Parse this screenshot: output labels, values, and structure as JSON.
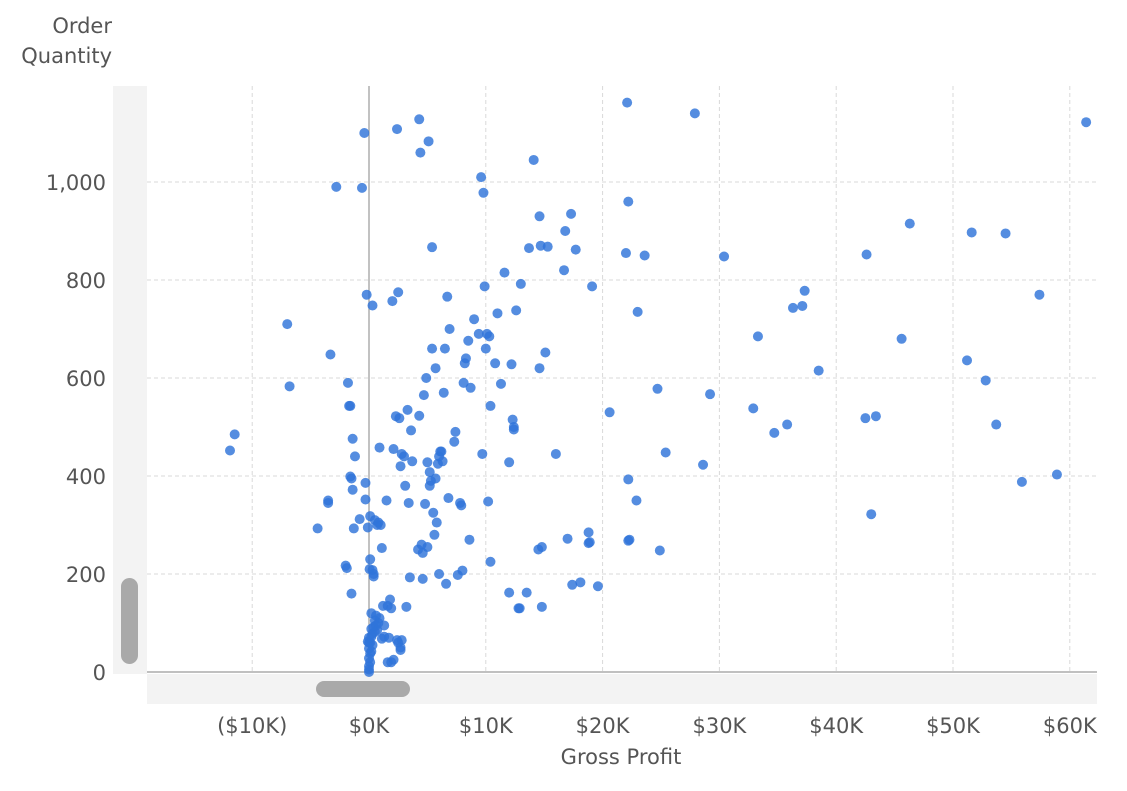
{
  "chart_data": {
    "type": "scatter",
    "xlabel": "Gross Profit",
    "ylabel_lines": [
      "Order",
      "Quantity"
    ],
    "xlim": [
      -20000,
      62000
    ],
    "ylim": [
      0,
      1170
    ],
    "x_ticks": [
      -10000,
      0,
      10000,
      20000,
      30000,
      40000,
      50000,
      60000
    ],
    "x_tick_labels": [
      "($10K)",
      "$0K",
      "$10K",
      "$20K",
      "$30K",
      "$40K",
      "$50K",
      "$60K"
    ],
    "y_ticks": [
      0,
      200,
      400,
      600,
      800,
      1000
    ],
    "y_tick_labels": [
      "0",
      "200",
      "400",
      "600",
      "800",
      "1,000"
    ],
    "grid": true,
    "point_color": "#2f74d9",
    "points": [
      [
        -11900,
        452
      ],
      [
        -11500,
        485
      ],
      [
        -7000,
        710
      ],
      [
        -6800,
        583
      ],
      [
        -4400,
        293
      ],
      [
        -3500,
        350
      ],
      [
        -3500,
        345
      ],
      [
        -3300,
        648
      ],
      [
        -2800,
        990
      ],
      [
        -2000,
        217
      ],
      [
        -1900,
        212
      ],
      [
        -1800,
        590
      ],
      [
        -1700,
        543
      ],
      [
        -1600,
        543
      ],
      [
        -1600,
        399
      ],
      [
        -1500,
        395
      ],
      [
        -1500,
        160
      ],
      [
        -1400,
        476
      ],
      [
        -1400,
        372
      ],
      [
        -1300,
        293
      ],
      [
        -1200,
        440
      ],
      [
        -800,
        312
      ],
      [
        -600,
        988
      ],
      [
        -400,
        1100
      ],
      [
        -300,
        386
      ],
      [
        -300,
        352
      ],
      [
        -200,
        770
      ],
      [
        -100,
        295
      ],
      [
        0,
        60
      ],
      [
        50,
        210
      ],
      [
        100,
        230
      ],
      [
        100,
        318
      ],
      [
        200,
        120
      ],
      [
        300,
        748
      ],
      [
        300,
        208
      ],
      [
        400,
        200
      ],
      [
        400,
        195
      ],
      [
        500,
        310
      ],
      [
        700,
        300
      ],
      [
        800,
        305
      ],
      [
        900,
        458
      ],
      [
        1000,
        300
      ],
      [
        1100,
        253
      ],
      [
        1200,
        135
      ],
      [
        1300,
        95
      ],
      [
        1500,
        350
      ],
      [
        1600,
        135
      ],
      [
        1800,
        148
      ],
      [
        1900,
        130
      ],
      [
        2000,
        757
      ],
      [
        2100,
        455
      ],
      [
        2300,
        522
      ],
      [
        2400,
        1108
      ],
      [
        2500,
        775
      ],
      [
        2600,
        518
      ],
      [
        2700,
        420
      ],
      [
        2800,
        445
      ],
      [
        3000,
        440
      ],
      [
        3100,
        380
      ],
      [
        3200,
        133
      ],
      [
        3300,
        535
      ],
      [
        3400,
        345
      ],
      [
        3500,
        193
      ],
      [
        3600,
        493
      ],
      [
        3700,
        430
      ],
      [
        4200,
        250
      ],
      [
        4300,
        523
      ],
      [
        4300,
        1128
      ],
      [
        4400,
        1060
      ],
      [
        4500,
        260
      ],
      [
        4600,
        190
      ],
      [
        4600,
        243
      ],
      [
        4700,
        565
      ],
      [
        4800,
        343
      ],
      [
        4900,
        600
      ],
      [
        5000,
        255
      ],
      [
        5000,
        428
      ],
      [
        5100,
        1083
      ],
      [
        5200,
        380
      ],
      [
        5200,
        408
      ],
      [
        5300,
        390
      ],
      [
        5400,
        660
      ],
      [
        5400,
        867
      ],
      [
        5500,
        325
      ],
      [
        5600,
        280
      ],
      [
        5700,
        395
      ],
      [
        5700,
        620
      ],
      [
        5800,
        305
      ],
      [
        5900,
        425
      ],
      [
        6000,
        200
      ],
      [
        6000,
        440
      ],
      [
        6100,
        450
      ],
      [
        6200,
        450
      ],
      [
        6300,
        430
      ],
      [
        6400,
        570
      ],
      [
        6500,
        660
      ],
      [
        6600,
        180
      ],
      [
        6700,
        766
      ],
      [
        6800,
        355
      ],
      [
        6900,
        700
      ],
      [
        7300,
        470
      ],
      [
        7400,
        490
      ],
      [
        7600,
        198
      ],
      [
        7800,
        345
      ],
      [
        7900,
        340
      ],
      [
        8000,
        207
      ],
      [
        8100,
        590
      ],
      [
        8200,
        630
      ],
      [
        8300,
        640
      ],
      [
        8500,
        676
      ],
      [
        8600,
        270
      ],
      [
        8700,
        580
      ],
      [
        9000,
        720
      ],
      [
        9400,
        690
      ],
      [
        9600,
        1010
      ],
      [
        9700,
        445
      ],
      [
        9800,
        978
      ],
      [
        9900,
        787
      ],
      [
        10000,
        660
      ],
      [
        10100,
        690
      ],
      [
        10200,
        348
      ],
      [
        10300,
        685
      ],
      [
        10400,
        225
      ],
      [
        10400,
        543
      ],
      [
        10800,
        630
      ],
      [
        11000,
        732
      ],
      [
        11300,
        588
      ],
      [
        11600,
        815
      ],
      [
        12000,
        428
      ],
      [
        12000,
        162
      ],
      [
        12200,
        628
      ],
      [
        12300,
        515
      ],
      [
        12400,
        495
      ],
      [
        12400,
        500
      ],
      [
        12600,
        738
      ],
      [
        12800,
        130
      ],
      [
        12900,
        130
      ],
      [
        13000,
        792
      ],
      [
        13500,
        162
      ],
      [
        13700,
        865
      ],
      [
        14100,
        1045
      ],
      [
        14500,
        250
      ],
      [
        14600,
        930
      ],
      [
        14600,
        620
      ],
      [
        14700,
        870
      ],
      [
        14800,
        255
      ],
      [
        14800,
        133
      ],
      [
        15100,
        652
      ],
      [
        15300,
        868
      ],
      [
        16000,
        445
      ],
      [
        16700,
        820
      ],
      [
        16800,
        900
      ],
      [
        17000,
        272
      ],
      [
        17300,
        935
      ],
      [
        17400,
        178
      ],
      [
        17700,
        862
      ],
      [
        18100,
        183
      ],
      [
        18800,
        285
      ],
      [
        18800,
        263
      ],
      [
        18900,
        265
      ],
      [
        19100,
        787
      ],
      [
        19600,
        175
      ],
      [
        20600,
        530
      ],
      [
        22000,
        855
      ],
      [
        22100,
        1162
      ],
      [
        22200,
        960
      ],
      [
        22200,
        268
      ],
      [
        22200,
        393
      ],
      [
        22300,
        270
      ],
      [
        22900,
        350
      ],
      [
        23000,
        735
      ],
      [
        23600,
        850
      ],
      [
        24700,
        578
      ],
      [
        24900,
        248
      ],
      [
        25400,
        448
      ],
      [
        27900,
        1140
      ],
      [
        28600,
        423
      ],
      [
        29200,
        567
      ],
      [
        30400,
        848
      ],
      [
        32900,
        538
      ],
      [
        33300,
        685
      ],
      [
        34700,
        488
      ],
      [
        35800,
        505
      ],
      [
        36300,
        743
      ],
      [
        37100,
        747
      ],
      [
        37300,
        778
      ],
      [
        38500,
        615
      ],
      [
        42500,
        518
      ],
      [
        42600,
        852
      ],
      [
        43000,
        322
      ],
      [
        43400,
        522
      ],
      [
        45600,
        680
      ],
      [
        46300,
        915
      ],
      [
        51200,
        636
      ],
      [
        51600,
        897
      ],
      [
        52800,
        595
      ],
      [
        53700,
        505
      ],
      [
        54500,
        895
      ],
      [
        55900,
        388
      ],
      [
        57400,
        770
      ],
      [
        58900,
        403
      ],
      [
        61400,
        1122
      ]
    ],
    "near_zero_points": [
      [
        0,
        0
      ],
      [
        0,
        5
      ],
      [
        0,
        12
      ],
      [
        100,
        20
      ],
      [
        0,
        28
      ],
      [
        100,
        38
      ],
      [
        200,
        42
      ],
      [
        0,
        48
      ],
      [
        300,
        55
      ],
      [
        100,
        60
      ],
      [
        -100,
        62
      ],
      [
        0,
        70
      ],
      [
        200,
        72
      ],
      [
        300,
        78
      ],
      [
        500,
        82
      ],
      [
        700,
        86
      ],
      [
        200,
        88
      ],
      [
        400,
        92
      ],
      [
        600,
        95
      ],
      [
        800,
        100
      ],
      [
        500,
        105
      ],
      [
        900,
        110
      ],
      [
        600,
        115
      ],
      [
        1100,
        68
      ],
      [
        1300,
        72
      ],
      [
        1700,
        70
      ],
      [
        2100,
        25
      ],
      [
        2400,
        65
      ],
      [
        2500,
        60
      ],
      [
        2700,
        50
      ],
      [
        2700,
        45
      ],
      [
        2800,
        65
      ],
      [
        1900,
        20
      ],
      [
        1600,
        20
      ]
    ]
  },
  "scrollbars": {
    "horizontal": "scrollbar",
    "vertical": "scrollbar"
  }
}
